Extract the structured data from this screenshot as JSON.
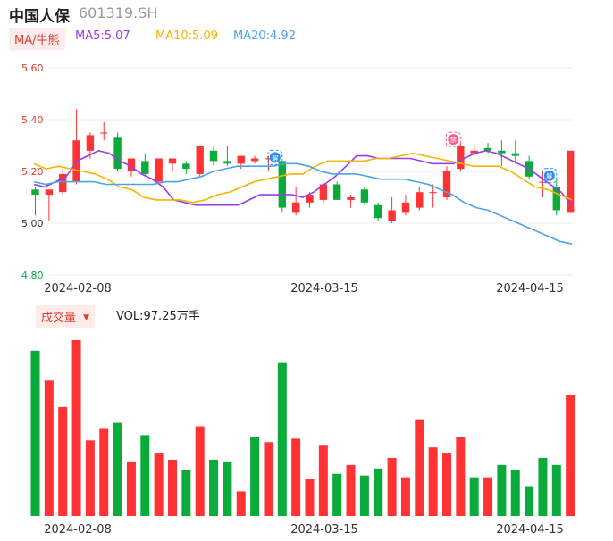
{
  "header": {
    "name": "中国人保",
    "code": "601319.SH"
  },
  "legend": {
    "tag": "MA/牛熊",
    "ma5": {
      "label": "MA5:5.07",
      "color": "#9b3de6"
    },
    "ma10": {
      "label": "MA10:5.09",
      "color": "#f5b400"
    },
    "ma20": {
      "label": "MA20:4.92",
      "color": "#4aa3ec"
    }
  },
  "volume_legend": {
    "tag": "成交量",
    "value": "VOL:97.25万手"
  },
  "colors": {
    "up": "#ff3333",
    "down": "#0aab3a"
  },
  "chart_data": [
    {
      "type": "candlestick",
      "title": "",
      "ylim": [
        4.8,
        5.6
      ],
      "yticks": [
        "5.60",
        "5.40",
        "5.20",
        "5.00",
        "4.80"
      ],
      "xticks": [
        {
          "label": "2024-02-08",
          "index": 2
        },
        {
          "label": "2024-03-15",
          "index": 20
        },
        {
          "label": "2024-04-15",
          "index": 35
        }
      ],
      "candles": [
        {
          "o": 5.13,
          "h": 5.14,
          "l": 5.03,
          "c": 5.11
        },
        {
          "o": 5.11,
          "h": 5.13,
          "l": 5.01,
          "c": 5.13
        },
        {
          "o": 5.12,
          "h": 5.21,
          "l": 5.11,
          "c": 5.19
        },
        {
          "o": 5.16,
          "h": 5.44,
          "l": 5.15,
          "c": 5.32
        },
        {
          "o": 5.28,
          "h": 5.35,
          "l": 5.25,
          "c": 5.34
        },
        {
          "o": 5.35,
          "h": 5.39,
          "l": 5.32,
          "c": 5.35
        },
        {
          "o": 5.33,
          "h": 5.35,
          "l": 5.2,
          "c": 5.21
        },
        {
          "o": 5.2,
          "h": 5.25,
          "l": 5.18,
          "c": 5.25
        },
        {
          "o": 5.24,
          "h": 5.27,
          "l": 5.18,
          "c": 5.19
        },
        {
          "o": 5.16,
          "h": 5.25,
          "l": 5.15,
          "c": 5.25
        },
        {
          "o": 5.23,
          "h": 5.25,
          "l": 5.2,
          "c": 5.25
        },
        {
          "o": 5.23,
          "h": 5.24,
          "l": 5.19,
          "c": 5.21
        },
        {
          "o": 5.19,
          "h": 5.3,
          "l": 5.18,
          "c": 5.3
        },
        {
          "o": 5.28,
          "h": 5.3,
          "l": 5.22,
          "c": 5.24
        },
        {
          "o": 5.24,
          "h": 5.3,
          "l": 5.22,
          "c": 5.23
        },
        {
          "o": 5.23,
          "h": 5.26,
          "l": 5.21,
          "c": 5.26
        },
        {
          "o": 5.24,
          "h": 5.26,
          "l": 5.23,
          "c": 5.25
        },
        {
          "o": 5.25,
          "h": 5.26,
          "l": 5.2,
          "c": 5.25
        },
        {
          "o": 5.24,
          "h": 5.24,
          "l": 5.04,
          "c": 5.06
        },
        {
          "o": 5.04,
          "h": 5.14,
          "l": 5.03,
          "c": 5.08
        },
        {
          "o": 5.08,
          "h": 5.12,
          "l": 5.06,
          "c": 5.11
        },
        {
          "o": 5.09,
          "h": 5.16,
          "l": 5.08,
          "c": 5.15
        },
        {
          "o": 5.15,
          "h": 5.16,
          "l": 5.09,
          "c": 5.09
        },
        {
          "o": 5.09,
          "h": 5.11,
          "l": 5.06,
          "c": 5.1
        },
        {
          "o": 5.13,
          "h": 5.14,
          "l": 5.07,
          "c": 5.08
        },
        {
          "o": 5.07,
          "h": 5.08,
          "l": 5.01,
          "c": 5.02
        },
        {
          "o": 5.01,
          "h": 5.1,
          "l": 5.0,
          "c": 5.05
        },
        {
          "o": 5.04,
          "h": 5.11,
          "l": 5.03,
          "c": 5.08
        },
        {
          "o": 5.06,
          "h": 5.14,
          "l": 5.05,
          "c": 5.12
        },
        {
          "o": 5.12,
          "h": 5.15,
          "l": 5.06,
          "c": 5.12
        },
        {
          "o": 5.1,
          "h": 5.22,
          "l": 5.09,
          "c": 5.2
        },
        {
          "o": 5.21,
          "h": 5.31,
          "l": 5.2,
          "c": 5.3
        },
        {
          "o": 5.27,
          "h": 5.3,
          "l": 5.26,
          "c": 5.28
        },
        {
          "o": 5.29,
          "h": 5.31,
          "l": 5.27,
          "c": 5.28
        },
        {
          "o": 5.28,
          "h": 5.32,
          "l": 5.22,
          "c": 5.27
        },
        {
          "o": 5.27,
          "h": 5.32,
          "l": 5.23,
          "c": 5.26
        },
        {
          "o": 5.24,
          "h": 5.26,
          "l": 5.17,
          "c": 5.18
        },
        {
          "o": 5.16,
          "h": 5.2,
          "l": 5.1,
          "c": 5.16
        },
        {
          "o": 5.14,
          "h": 5.17,
          "l": 5.03,
          "c": 5.05
        },
        {
          "o": 5.04,
          "h": 5.28,
          "l": 5.04,
          "c": 5.28
        }
      ],
      "series": [
        {
          "key": "ma5",
          "values": [
            5.15,
            5.14,
            5.16,
            5.18,
            5.24,
            5.26,
            5.28,
            5.27,
            5.24,
            5.22,
            5.19,
            5.17,
            5.14,
            5.09,
            5.08,
            5.07,
            5.07,
            5.07,
            5.07,
            5.07,
            5.09,
            5.11,
            5.11,
            5.11,
            5.11,
            5.1,
            5.12,
            5.15,
            5.18,
            5.22,
            5.26,
            5.26,
            5.25,
            5.25,
            5.25,
            5.25,
            5.24,
            5.23,
            5.23,
            5.23,
            5.25,
            5.27,
            5.28,
            5.27,
            5.25,
            5.23,
            5.21,
            5.18,
            5.15,
            5.12,
            5.07
          ]
        },
        {
          "key": "ma10",
          "values": [
            5.23,
            5.21,
            5.22,
            5.21,
            5.2,
            5.19,
            5.17,
            5.14,
            5.13,
            5.1,
            5.09,
            5.09,
            5.09,
            5.08,
            5.09,
            5.11,
            5.12,
            5.14,
            5.16,
            5.17,
            5.18,
            5.19,
            5.19,
            5.22,
            5.24,
            5.24,
            5.24,
            5.24,
            5.25,
            5.25,
            5.26,
            5.27,
            5.26,
            5.25,
            5.24,
            5.23,
            5.22,
            5.22,
            5.22,
            5.2,
            5.17,
            5.14,
            5.13,
            5.11,
            5.09
          ]
        },
        {
          "key": "ma20",
          "values": [
            5.16,
            5.15,
            5.16,
            5.16,
            5.16,
            5.16,
            5.15,
            5.15,
            5.15,
            5.15,
            5.15,
            5.16,
            5.16,
            5.17,
            5.18,
            5.2,
            5.21,
            5.22,
            5.22,
            5.22,
            5.22,
            5.23,
            5.23,
            5.22,
            5.2,
            5.19,
            5.19,
            5.19,
            5.18,
            5.17,
            5.17,
            5.17,
            5.16,
            5.15,
            5.13,
            5.11,
            5.08,
            5.06,
            5.05,
            5.03,
            5.01,
            4.99,
            4.97,
            4.95,
            4.93,
            4.92
          ]
        }
      ],
      "markers": [
        {
          "index": 18,
          "type": "blue",
          "glyph": "解"
        },
        {
          "index": 31,
          "type": "pink",
          "glyph": "禁"
        },
        {
          "index": 38,
          "type": "blue",
          "glyph": "解"
        }
      ]
    },
    {
      "type": "bar",
      "title": "成交量",
      "ylim": [
        0,
        100
      ],
      "values": [
        94,
        77,
        62,
        100,
        43,
        50,
        53,
        31,
        46,
        36,
        32,
        26,
        51,
        32,
        31,
        14,
        45,
        42,
        87,
        44,
        21,
        40,
        24,
        29,
        23,
        27,
        33,
        22,
        55,
        39,
        36,
        45,
        22,
        22,
        29,
        26,
        17,
        33,
        29,
        69
      ],
      "up": [
        false,
        true,
        true,
        true,
        true,
        true,
        false,
        true,
        false,
        true,
        true,
        false,
        true,
        false,
        false,
        true,
        false,
        true,
        false,
        true,
        true,
        true,
        false,
        true,
        false,
        false,
        true,
        true,
        true,
        true,
        true,
        true,
        false,
        true,
        false,
        false,
        false,
        false,
        false,
        true
      ]
    }
  ]
}
